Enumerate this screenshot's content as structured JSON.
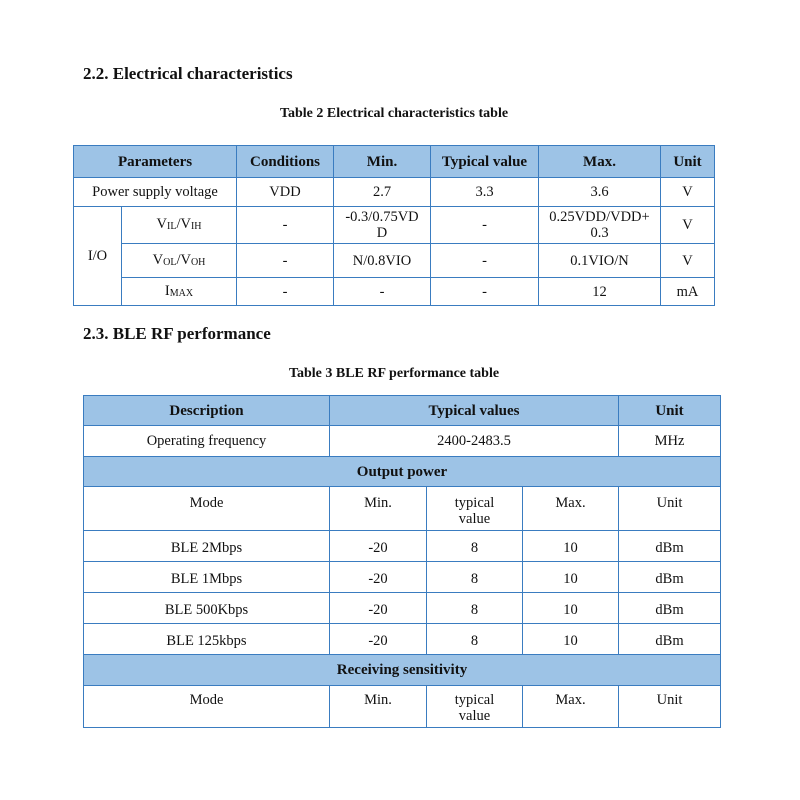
{
  "section22": {
    "heading": "2.2.  Electrical characteristics",
    "caption": "Table 2 Electrical characteristics table",
    "headers": [
      "Parameters",
      "Conditions",
      "Min.",
      "Typical value",
      "Max.",
      "Unit"
    ],
    "power": [
      "Power supply voltage",
      "VDD",
      "2.7",
      "3.3",
      "3.6",
      "V"
    ],
    "io_label": "I/O",
    "rows": [
      {
        "p": "V",
        "s1": "IL",
        "sep": "/V",
        "s2": "IH",
        "cond": "-",
        "min": "-0.3/0.75VDD",
        "typ": "-",
        "max": "0.25VDD/VDD+0.3",
        "unit": "V"
      },
      {
        "p": "V",
        "s1": "OL",
        "sep": "/V",
        "s2": "OH",
        "cond": "-",
        "min": "N/0.8VIO",
        "typ": "-",
        "max": "0.1VIO/N",
        "unit": "V"
      },
      {
        "p": "I",
        "s1": "MAX",
        "sep": "",
        "s2": "",
        "cond": "-",
        "min": "-",
        "typ": "-",
        "max": "12",
        "unit": "mA"
      }
    ]
  },
  "section23": {
    "heading": "2.3.  BLE RF performance",
    "caption": "Table 3 BLE RF performance table",
    "headers": [
      "Description",
      "Typical values",
      "Unit"
    ],
    "freq": [
      "Operating frequency",
      "2400-2483.5",
      "MHz"
    ],
    "output_power": "Output power",
    "sub_headers": [
      "Mode",
      "Min.",
      "typical value",
      "Max.",
      "Unit"
    ],
    "rows": [
      [
        "BLE 2Mbps",
        "-20",
        "8",
        "10",
        "dBm"
      ],
      [
        "BLE 1Mbps",
        "-20",
        "8",
        "10",
        "dBm"
      ],
      [
        "BLE 500Kbps",
        "-20",
        "8",
        "10",
        "dBm"
      ],
      [
        "BLE 125kbps",
        "-20",
        "8",
        "10",
        "dBm"
      ]
    ],
    "receiving": "Receiving sensitivity",
    "sub_headers2": [
      "Mode",
      "Min.",
      "typical value",
      "Max.",
      "Unit"
    ]
  }
}
